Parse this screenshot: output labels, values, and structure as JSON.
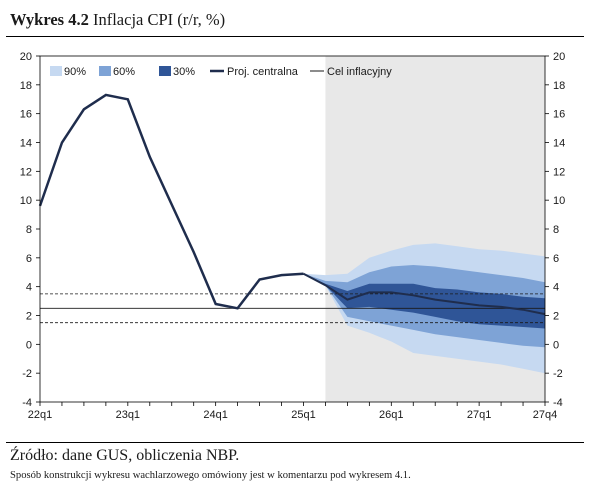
{
  "header": {
    "label": "Wykres 4.2",
    "title": "Inflacja CPI (r/r, %)"
  },
  "footer": {
    "source": "Źródło: dane GUS, obliczenia NBP.",
    "note": "Sposób konstrukcji wykresu wachlarzowego omówiony jest w komentarzu pod wykresem 4.1."
  },
  "chart_data": {
    "type": "line",
    "title": "Inflacja CPI (r/r, %)",
    "xlabel": "",
    "ylabel": "",
    "x_tick_labels": [
      "22q1",
      "23q1",
      "24q1",
      "25q1",
      "26q1",
      "27q1",
      "27q4"
    ],
    "ylim": [
      -4,
      20
    ],
    "y_ticks": [
      -4,
      -2,
      0,
      2,
      4,
      6,
      8,
      10,
      12,
      14,
      16,
      18,
      20
    ],
    "grid": false,
    "legend_position": "top-left",
    "legend": [
      {
        "label": "90%",
        "kind": "band-90"
      },
      {
        "label": "60%",
        "kind": "band-60"
      },
      {
        "label": "30%",
        "kind": "band-30"
      },
      {
        "label": "Proj. centralna",
        "kind": "line-central"
      },
      {
        "label": "Cel inflacyjny",
        "kind": "line-target"
      }
    ],
    "colors": {
      "band-90": "#c6d9f1",
      "band-60": "#7ea3d6",
      "band-30": "#2f5597",
      "central": "#1f2d4d",
      "target": "#1a1a1a",
      "forecast_bg": "#e8e8e8"
    },
    "x": [
      "22q1",
      "22q2",
      "22q3",
      "22q4",
      "23q1",
      "23q2",
      "23q3",
      "23q4",
      "24q1",
      "24q2",
      "24q3",
      "24q4",
      "25q1",
      "25q2",
      "25q3",
      "25q4",
      "26q1",
      "26q2",
      "26q3",
      "26q4",
      "27q1",
      "27q2",
      "27q3",
      "27q4"
    ],
    "forecast_start": "25q2",
    "inflation": [
      9.6,
      14.0,
      16.3,
      17.3,
      17.0,
      13.0,
      9.7,
      6.4,
      2.8,
      2.5,
      4.5,
      4.8,
      4.9
    ],
    "projection_x": [
      "25q1",
      "25q2",
      "25q3",
      "25q4",
      "26q1",
      "26q2",
      "26q3",
      "26q4",
      "27q1",
      "27q2",
      "27q3",
      "27q4"
    ],
    "central": [
      4.9,
      4.1,
      3.1,
      3.6,
      3.6,
      3.4,
      3.1,
      2.9,
      2.7,
      2.6,
      2.4,
      2.1
    ],
    "band90": {
      "lower": [
        4.9,
        4.1,
        1.3,
        0.8,
        0.2,
        -0.6,
        -0.8,
        -1.0,
        -1.2,
        -1.4,
        -1.7,
        -2.0
      ],
      "upper": [
        4.9,
        4.8,
        4.9,
        6.0,
        6.5,
        6.9,
        7.0,
        6.8,
        6.6,
        6.5,
        6.3,
        6.1
      ]
    },
    "band60": {
      "lower": [
        4.9,
        4.1,
        1.9,
        1.6,
        1.3,
        1.0,
        0.7,
        0.5,
        0.3,
        0.1,
        -0.1,
        -0.2
      ],
      "upper": [
        4.9,
        4.4,
        4.3,
        5.0,
        5.4,
        5.5,
        5.4,
        5.2,
        5.0,
        4.8,
        4.6,
        4.3
      ]
    },
    "band30": {
      "lower": [
        4.9,
        4.1,
        2.5,
        2.6,
        2.4,
        2.2,
        1.9,
        1.6,
        1.4,
        1.3,
        1.2,
        1.1
      ],
      "upper": [
        4.9,
        4.2,
        3.7,
        4.2,
        4.2,
        4.2,
        3.9,
        3.8,
        3.6,
        3.5,
        3.3,
        3.2
      ]
    },
    "target": {
      "value": 2.5,
      "band": [
        1.5,
        3.5
      ]
    }
  }
}
